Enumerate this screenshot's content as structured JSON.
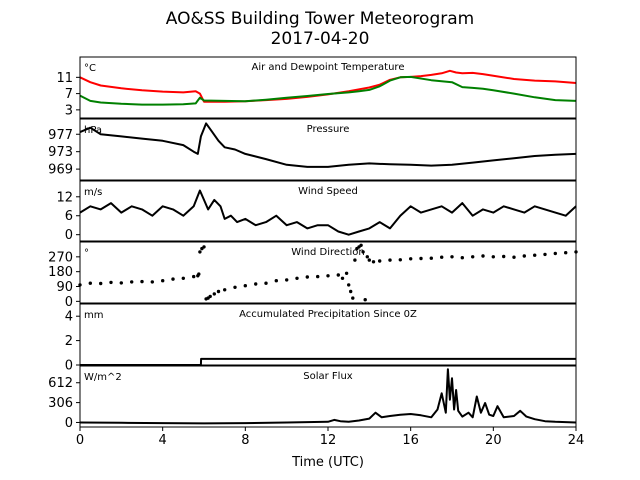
{
  "figure": {
    "title_line1": "AO&SS Building Tower Meteorogram",
    "title_line2": "2017-04-20",
    "xlabel": "Time (UTC)",
    "x_ticks": [
      "0",
      "4",
      "8",
      "12",
      "16",
      "20",
      "24"
    ]
  },
  "colors": {
    "temperature": "#ff0000",
    "dewpoint": "#008000",
    "line": "#000000"
  },
  "chart_data": [
    {
      "type": "line",
      "title": "Air and Dewpoint Temperature",
      "unit": "°C",
      "xlim": [
        0,
        24
      ],
      "ylim": [
        1,
        16
      ],
      "yticks": [
        3,
        7,
        11
      ],
      "series": [
        {
          "color": "red",
          "x": [
            0,
            0.5,
            1,
            2,
            3,
            4,
            5,
            5.6,
            5.8,
            6,
            6.5,
            7,
            8,
            9,
            10,
            11,
            12,
            13,
            14,
            14.5,
            15,
            15.5,
            16,
            16.5,
            17,
            17.5,
            17.9,
            18.2,
            18.5,
            19,
            19.5,
            20,
            21,
            22,
            23,
            24
          ],
          "y": [
            11,
            9.8,
            9,
            8.3,
            7.8,
            7.5,
            7.3,
            7.6,
            7,
            5,
            5,
            5,
            5.1,
            5.4,
            5.7,
            6.2,
            6.8,
            7.6,
            8.5,
            9.2,
            10.4,
            11,
            11.1,
            11.3,
            11.6,
            12,
            12.6,
            12.2,
            12,
            12.1,
            11.8,
            11.4,
            10.6,
            10.2,
            10,
            9.6
          ]
        },
        {
          "color": "green",
          "x": [
            0,
            0.5,
            1,
            2,
            3,
            4,
            5,
            5.6,
            5.8,
            6,
            7,
            8,
            9,
            10,
            11,
            12,
            13,
            13.5,
            14,
            14.5,
            15,
            15.5,
            16,
            17,
            18,
            18.5,
            19,
            19.5,
            20,
            21,
            22,
            23,
            24
          ],
          "y": [
            6.5,
            5.2,
            4.8,
            4.5,
            4.3,
            4.3,
            4.4,
            4.6,
            6,
            5.3,
            5.2,
            5.1,
            5.5,
            6,
            6.4,
            6.9,
            7.3,
            7.6,
            7.9,
            8.8,
            10.2,
            11,
            11.1,
            10.3,
            9.8,
            8.6,
            8.4,
            8.2,
            7.8,
            7,
            6.1,
            5.4,
            5.2
          ]
        }
      ]
    },
    {
      "type": "line",
      "title": "Pressure",
      "unit": "hPa",
      "xlim": [
        0,
        24
      ],
      "ylim": [
        966.5,
        980.5
      ],
      "yticks": [
        969,
        973,
        977
      ],
      "series": [
        {
          "color": "black",
          "x": [
            0,
            0.5,
            1,
            2,
            3,
            4,
            5,
            5.5,
            5.7,
            5.85,
            6.1,
            6.4,
            6.7,
            7,
            7.5,
            8,
            9,
            10,
            11,
            12,
            13,
            14,
            15,
            16,
            17,
            18,
            19,
            20,
            21,
            22,
            23,
            24
          ],
          "y": [
            977.5,
            978.5,
            977,
            976.5,
            976,
            975.5,
            974.5,
            973,
            972.5,
            976.5,
            979.5,
            977.5,
            975.5,
            974,
            973.5,
            972.5,
            971.3,
            970,
            969.5,
            969.5,
            970,
            970.3,
            970.1,
            970,
            969.8,
            970,
            970.5,
            971,
            971.5,
            972,
            972.3,
            972.5
          ]
        }
      ]
    },
    {
      "type": "line",
      "title": "Wind Speed",
      "unit": "m/s",
      "xlim": [
        0,
        24
      ],
      "ylim": [
        -2,
        17
      ],
      "yticks": [
        0,
        6,
        12
      ],
      "series": [
        {
          "color": "black",
          "x": [
            0,
            0.5,
            1,
            1.5,
            2,
            2.5,
            3,
            3.5,
            4,
            4.5,
            5,
            5.5,
            5.8,
            6,
            6.2,
            6.5,
            6.8,
            7,
            7.3,
            7.6,
            8,
            8.5,
            9,
            9.5,
            10,
            10.5,
            11,
            11.5,
            12,
            12.5,
            13,
            13.5,
            14,
            14.5,
            15,
            15.5,
            16,
            16.5,
            17,
            17.5,
            18,
            18.5,
            19,
            19.5,
            20,
            20.5,
            21,
            21.5,
            22,
            22.5,
            23,
            23.5,
            24
          ],
          "y": [
            7,
            9,
            8,
            10,
            7,
            9,
            8,
            6,
            9,
            8,
            6,
            9,
            14,
            11,
            8,
            11,
            9,
            5,
            6,
            4,
            5,
            3,
            4,
            6,
            3,
            4,
            2,
            3,
            3,
            1,
            0,
            1,
            2,
            4,
            2,
            6,
            9,
            7,
            8,
            9,
            7,
            10,
            6,
            8,
            7,
            9,
            8,
            7,
            9,
            8,
            7,
            6,
            9
          ]
        }
      ]
    },
    {
      "type": "scatter",
      "title": "Wind Direction",
      "unit": "°",
      "xlim": [
        0,
        24
      ],
      "ylim": [
        -10,
        360
      ],
      "yticks": [
        0,
        90,
        180,
        270
      ],
      "series": [
        {
          "color": "black",
          "x": [
            0,
            0.5,
            1,
            1.5,
            2,
            2.5,
            3,
            3.5,
            4,
            4.5,
            5,
            5.5,
            5.7,
            5.75,
            5.8,
            5.9,
            6,
            6.1,
            6.2,
            6.3,
            6.5,
            6.7,
            7,
            7.5,
            8,
            8.5,
            9,
            9.5,
            10,
            10.5,
            11,
            11.5,
            12,
            12.5,
            12.7,
            12.9,
            13,
            13.1,
            13.2,
            13.3,
            13.4,
            13.5,
            13.6,
            13.7,
            13.8,
            13.9,
            14,
            14.2,
            14.5,
            15,
            15.5,
            16,
            16.5,
            17,
            17.5,
            18,
            18.5,
            19,
            19.5,
            20,
            20.5,
            21,
            21.5,
            22,
            22.5,
            23,
            23.5,
            24
          ],
          "y": [
            100,
            110,
            108,
            115,
            112,
            118,
            120,
            118,
            125,
            135,
            140,
            150,
            155,
            165,
            300,
            320,
            330,
            15,
            20,
            30,
            45,
            60,
            70,
            85,
            95,
            105,
            110,
            125,
            130,
            140,
            148,
            150,
            155,
            160,
            140,
            170,
            100,
            60,
            20,
            250,
            320,
            330,
            340,
            300,
            10,
            270,
            250,
            240,
            245,
            250,
            252,
            258,
            260,
            262,
            268,
            270,
            265,
            270,
            275,
            270,
            272,
            268,
            275,
            280,
            285,
            290,
            295,
            300
          ]
        }
      ]
    },
    {
      "type": "line",
      "title": "Accumulated Precipitation Since 0Z",
      "unit": "mm",
      "xlim": [
        0,
        24
      ],
      "ylim": [
        0,
        5
      ],
      "yticks": [
        0,
        2,
        4
      ],
      "series": [
        {
          "color": "black",
          "x": [
            0,
            5.85,
            5.86,
            24
          ],
          "y": [
            0,
            0,
            0.5,
            0.5
          ]
        }
      ]
    },
    {
      "type": "line",
      "title": "Solar Flux",
      "unit": "W/m^2",
      "xlim": [
        0,
        24
      ],
      "ylim": [
        -70,
        870
      ],
      "yticks": [
        0,
        306,
        612
      ],
      "series": [
        {
          "color": "black",
          "x": [
            0,
            2,
            4,
            6,
            8,
            10,
            12,
            12.3,
            12.6,
            13,
            13.5,
            14,
            14.3,
            14.6,
            15,
            15.5,
            16,
            16.5,
            17,
            17.3,
            17.5,
            17.7,
            17.8,
            17.9,
            18,
            18.1,
            18.2,
            18.3,
            18.5,
            18.8,
            19,
            19.2,
            19.4,
            19.6,
            19.8,
            20,
            20.2,
            20.5,
            21,
            21.3,
            21.6,
            22,
            22.5,
            23,
            23.5,
            24
          ],
          "y": [
            0,
            -5,
            -10,
            -15,
            -10,
            0,
            10,
            40,
            20,
            10,
            30,
            60,
            150,
            80,
            100,
            120,
            130,
            110,
            80,
            200,
            450,
            150,
            820,
            350,
            680,
            200,
            500,
            180,
            90,
            150,
            80,
            400,
            150,
            300,
            120,
            100,
            250,
            80,
            100,
            180,
            90,
            50,
            20,
            10,
            5,
            0
          ]
        }
      ]
    }
  ]
}
